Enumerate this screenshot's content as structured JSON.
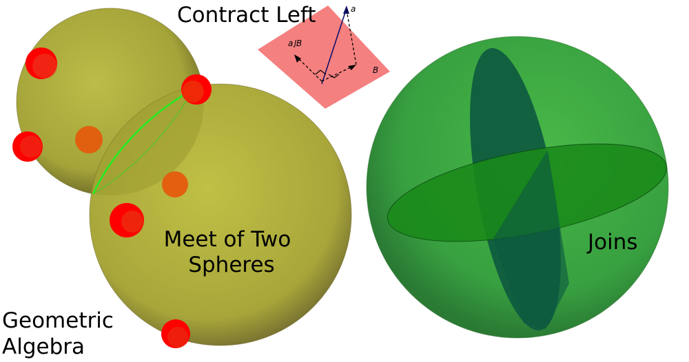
{
  "labels": {
    "contract_left": "Contract Left",
    "meet_line1": "Meet of Two",
    "meet_line2": "Spheres",
    "joins": "Joins",
    "ga_line1": "Geometric",
    "ga_line2": "Algebra"
  },
  "inset": {
    "vector_label": "a",
    "plane_label": "B",
    "contraction_label": "a⌋B"
  },
  "colors": {
    "sphere_yellow": "#b4b43c",
    "point_red": "#ff0000",
    "point_orange": "#e06010",
    "meet_circle": "#22dd22",
    "joins_sphere": "#3aa83a",
    "joins_disk_dark": "#0e5a40",
    "joins_disk_green": "#1a8a1a",
    "plane_pink": "#f58080",
    "vector_navy": "#10106a"
  }
}
